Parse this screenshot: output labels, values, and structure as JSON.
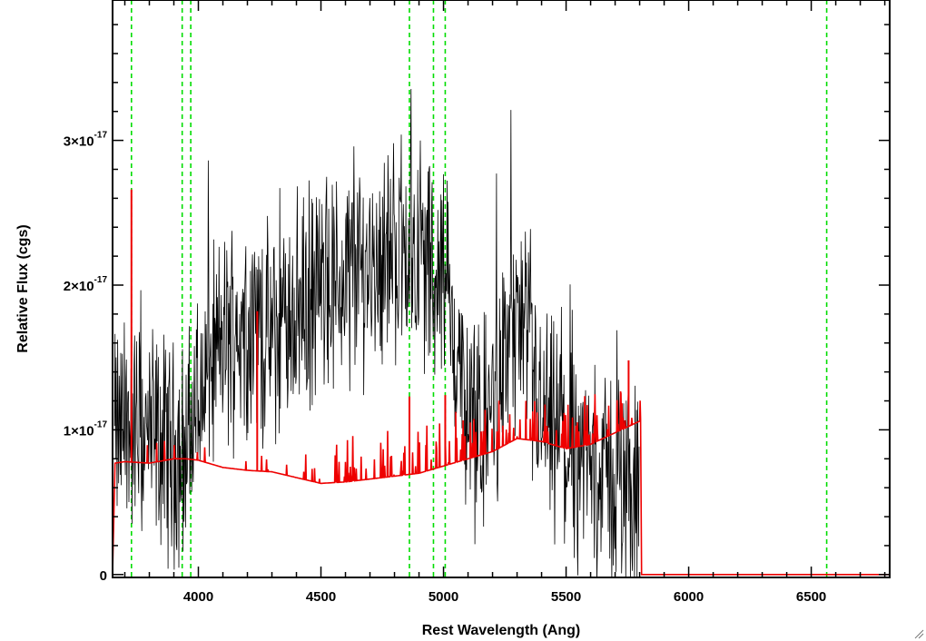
{
  "chart_data": {
    "type": "line",
    "xlabel": "Rest Wavelength (Ang)",
    "ylabel": "Relative Flux (cgs)",
    "xlim": [
      3650,
      6820
    ],
    "ylim": [
      -2e-19,
      3.97e-17
    ],
    "xticks": [
      {
        "value": 4000,
        "label": "4000"
      },
      {
        "value": 4500,
        "label": "4500"
      },
      {
        "value": 5000,
        "label": "5000"
      },
      {
        "value": 5500,
        "label": "5500"
      },
      {
        "value": 6000,
        "label": "6000"
      },
      {
        "value": 6500,
        "label": "6500"
      }
    ],
    "yticks": [
      {
        "value": 0,
        "mantissa": "0",
        "exponent": ""
      },
      {
        "value": 1e-17,
        "mantissa": "1×10",
        "exponent": "-17"
      },
      {
        "value": 2e-17,
        "mantissa": "2×10",
        "exponent": "-17"
      },
      {
        "value": 3e-17,
        "mantissa": "3×10",
        "exponent": "-17"
      }
    ],
    "grid": false,
    "vlines": {
      "color": "#00dd00",
      "style": "dashed",
      "x": [
        3727,
        3934,
        3969,
        4861,
        4959,
        5007,
        6563
      ]
    },
    "series": [
      {
        "color": "#000000",
        "style": "noisy-spectrum",
        "x": [
          3650,
          3700,
          3750,
          3800,
          3850,
          3900,
          3950,
          4000,
          4050,
          4100,
          4150,
          4200,
          4250,
          4300,
          4350,
          4400,
          4450,
          4500,
          4550,
          4600,
          4650,
          4700,
          4750,
          4800,
          4850,
          4900,
          4950,
          5000,
          5050,
          5100,
          5150,
          5200,
          5250,
          5300,
          5350,
          5400,
          5450,
          5500,
          5550,
          5600,
          5650,
          5700,
          5750,
          5800
        ],
        "y": [
          9.5e-18,
          1e-17,
          1e-17,
          9.5e-18,
          9e-18,
          8.5e-18,
          8.5e-18,
          1.2e-17,
          1.45e-17,
          1.6e-17,
          1.7e-17,
          1.75e-17,
          1.7e-17,
          1.6e-17,
          1.75e-17,
          1.85e-17,
          1.9e-17,
          1.95e-17,
          2e-17,
          2.05e-17,
          2.1e-17,
          2.15e-17,
          2.2e-17,
          2.25e-17,
          2.3e-17,
          2.2e-17,
          2.1e-17,
          2.05e-17,
          1.6e-17,
          1e-17,
          9.5e-18,
          1.2e-17,
          1.5e-17,
          1.75e-17,
          1.45e-17,
          1.05e-17,
          9.5e-18,
          8.5e-18,
          8e-18,
          7.5e-18,
          7e-18,
          6.5e-18,
          6e-18,
          5.5e-18
        ]
      },
      {
        "color": "#ee0000",
        "style": "model",
        "x": [
          3650,
          3660,
          3700,
          3800,
          3900,
          3950,
          4000,
          4100,
          4200,
          4300,
          4400,
          4500,
          4600,
          4700,
          4800,
          4850,
          4900,
          5000,
          5100,
          5200,
          5300,
          5400,
          5500,
          5600,
          5700,
          5800,
          5805,
          5810,
          6820
        ],
        "y": [
          0.0,
          7.7e-18,
          7.8e-18,
          7.7e-18,
          8e-18,
          8e-18,
          7.9e-18,
          7.4e-18,
          7.2e-18,
          7.1e-18,
          6.7e-18,
          6.3e-18,
          6.4e-18,
          6.6e-18,
          6.8e-18,
          6.9e-18,
          7e-18,
          7.5e-18,
          8e-18,
          8.5e-18,
          9.4e-18,
          9.2e-18,
          8.7e-18,
          9e-18,
          9.8e-18,
          1.06e-17,
          1.08e-17,
          0.0,
          0.0
        ]
      }
    ]
  }
}
